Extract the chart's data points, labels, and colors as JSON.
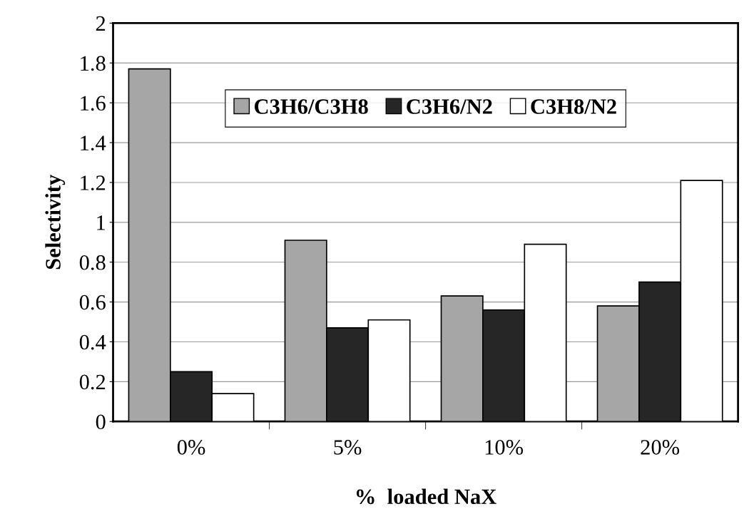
{
  "chart_data": {
    "type": "bar",
    "xlabel": "%  loaded NaX",
    "ylabel": "Selectivity",
    "categories": [
      "0%",
      "5%",
      "10%",
      "20%"
    ],
    "series": [
      {
        "name": "C3H6/C3H8",
        "color": "#a6a6a6",
        "values": [
          1.77,
          0.91,
          0.63,
          0.58
        ]
      },
      {
        "name": "C3H6/N2",
        "color": "#262626",
        "values": [
          0.25,
          0.47,
          0.56,
          0.7
        ]
      },
      {
        "name": "C3H8/N2",
        "color": "#ffffff",
        "values": [
          0.14,
          0.51,
          0.89,
          1.21
        ]
      }
    ],
    "ylim": [
      0,
      2
    ],
    "yticks": [
      0,
      0.2,
      0.4,
      0.6,
      0.8,
      1,
      1.2,
      1.4,
      1.6,
      1.8,
      2
    ],
    "grid": "y",
    "legend": "top"
  }
}
